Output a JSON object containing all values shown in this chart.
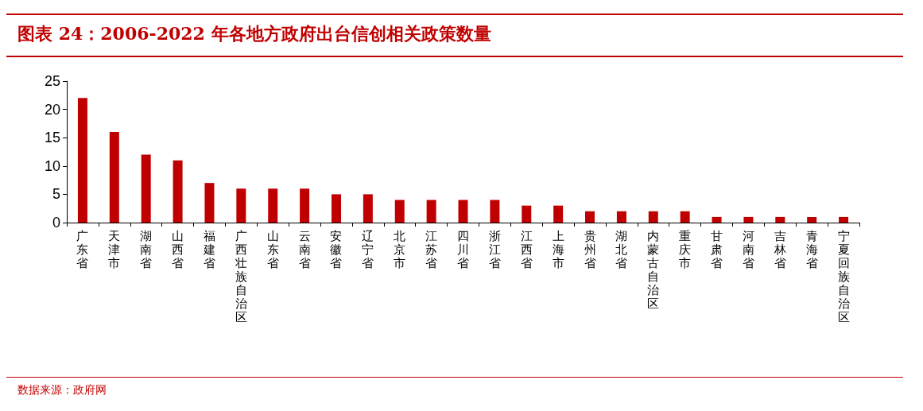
{
  "chart_data": {
    "type": "bar",
    "title": "图表 24：2006-2022 年各地方政府出台信创相关政策数量",
    "categories": [
      "广东省",
      "天津市",
      "湖南省",
      "山西省",
      "福建省",
      "广西壮族自治区",
      "山东省",
      "云南省",
      "安徽省",
      "辽宁省",
      "北京市",
      "江苏省",
      "四川省",
      "浙江省",
      "江西省",
      "上海市",
      "贵州省",
      "湖北省",
      "内蒙古自治区",
      "重庆市",
      "甘肃省",
      "河南省",
      "吉林省",
      "青海省",
      "宁夏回族自治区"
    ],
    "values": [
      22,
      16,
      12,
      11,
      7,
      6,
      6,
      6,
      5,
      5,
      4,
      4,
      4,
      4,
      3,
      3,
      2,
      2,
      2,
      2,
      1,
      1,
      1,
      1,
      1
    ],
    "color": "#c00000",
    "ylim": [
      0,
      25
    ],
    "yticks": [
      0,
      5,
      10,
      15,
      20,
      25
    ],
    "grid": false,
    "annotations": [
      "数据来源：政府网"
    ]
  }
}
